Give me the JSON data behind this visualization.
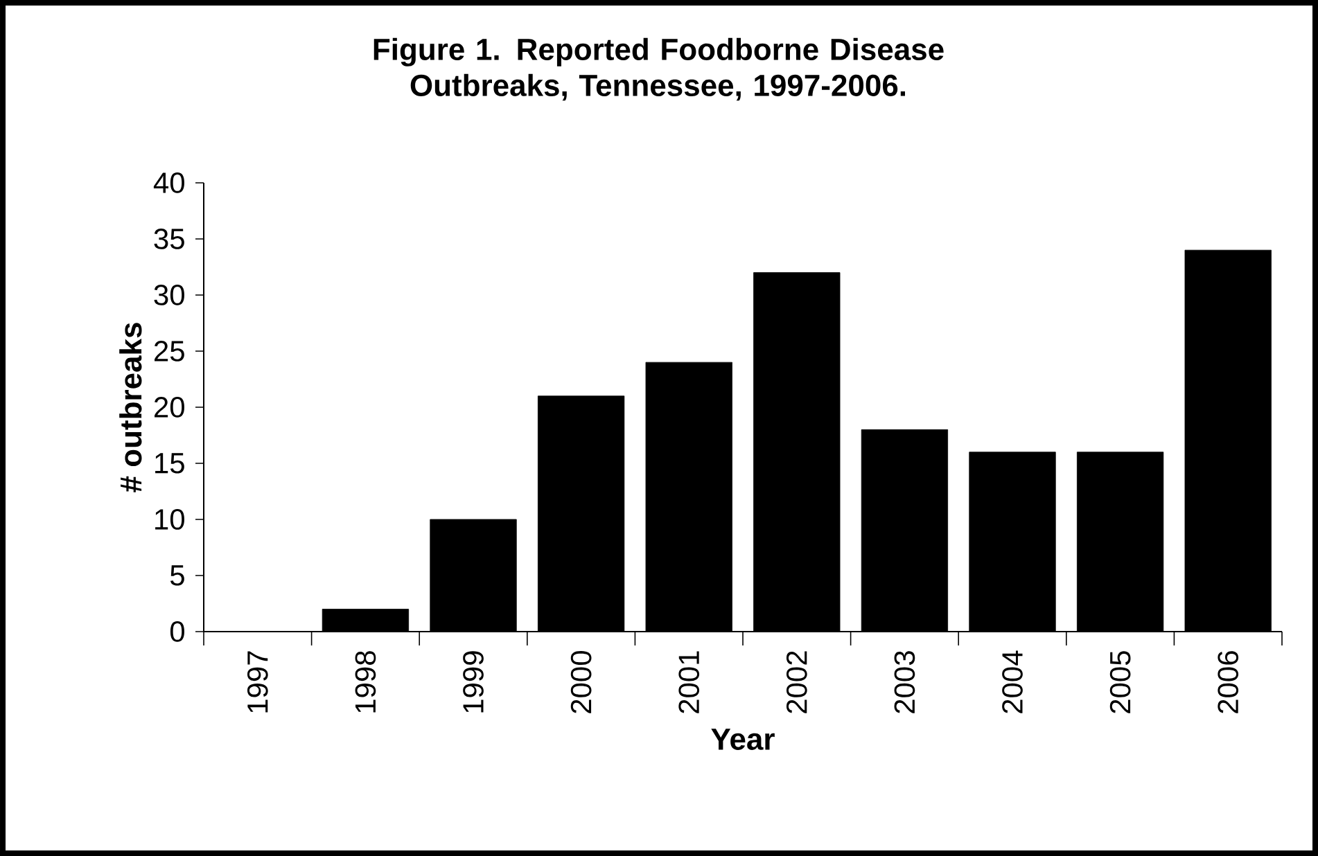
{
  "chart_data": {
    "type": "bar",
    "title": "Figure 1. Reported Foodborne Disease Outbreaks, Tennessee, 1997-2006.",
    "xlabel": "Year",
    "ylabel": "# outbreaks",
    "categories": [
      "1997",
      "1998",
      "1999",
      "2000",
      "2001",
      "2002",
      "2003",
      "2004",
      "2005",
      "2006"
    ],
    "values": [
      0,
      2,
      10,
      21,
      24,
      32,
      18,
      16,
      16,
      34
    ],
    "color": "#000000",
    "ylim": [
      0,
      40
    ],
    "yticks": [
      0,
      5,
      10,
      15,
      20,
      25,
      30,
      35,
      40
    ]
  }
}
